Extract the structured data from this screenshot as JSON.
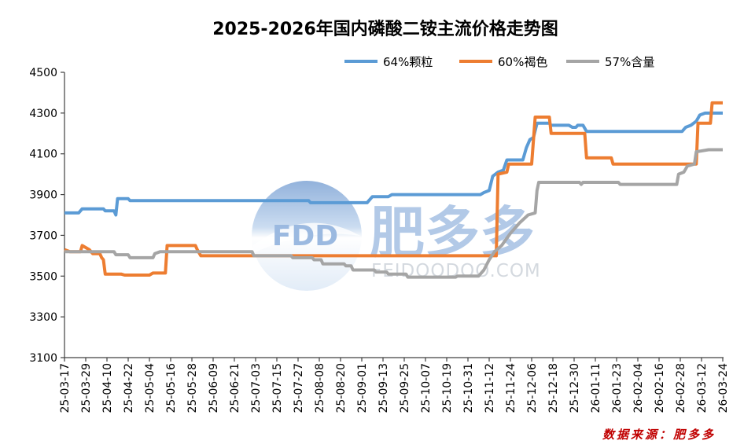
{
  "chart_data": {
    "type": "line",
    "title": "2025-2026年国内磷酸二铵主流价格走势图",
    "x_range": [
      "2025-03-17",
      "2026-03-24"
    ],
    "x_tick_labels": [
      "25-03-17",
      "25-03-29",
      "25-04-10",
      "25-04-22",
      "25-05-04",
      "25-05-16",
      "25-05-28",
      "25-06-09",
      "25-06-21",
      "25-07-03",
      "25-07-15",
      "25-07-27",
      "25-08-08",
      "25-08-20",
      "25-09-01",
      "25-09-13",
      "25-09-25",
      "25-10-07",
      "25-10-19",
      "25-10-31",
      "25-11-12",
      "25-11-24",
      "25-12-06",
      "25-12-18",
      "25-12-30",
      "26-01-11",
      "26-01-23",
      "26-02-04",
      "26-02-16",
      "26-02-28",
      "26-03-12",
      "26-03-24"
    ],
    "ylim": [
      3100,
      4500
    ],
    "y_ticks": [
      3100,
      3300,
      3500,
      3700,
      3900,
      4100,
      4300,
      4500
    ],
    "grid": false,
    "legend_position": "top",
    "series": [
      {
        "name": "64%颗粒",
        "color": "#5B9BD5",
        "points": [
          [
            "2025-03-17",
            3810
          ],
          [
            "2025-03-25",
            3810
          ],
          [
            "2025-03-27",
            3830
          ],
          [
            "2025-04-08",
            3830
          ],
          [
            "2025-04-09",
            3820
          ],
          [
            "2025-04-14",
            3820
          ],
          [
            "2025-04-15",
            3800
          ],
          [
            "2025-04-16",
            3880
          ],
          [
            "2025-04-22",
            3880
          ],
          [
            "2025-04-23",
            3870
          ],
          [
            "2025-08-02",
            3870
          ],
          [
            "2025-08-03",
            3860
          ],
          [
            "2025-09-04",
            3860
          ],
          [
            "2025-09-05",
            3870
          ],
          [
            "2025-09-07",
            3890
          ],
          [
            "2025-09-16",
            3890
          ],
          [
            "2025-09-18",
            3900
          ],
          [
            "2025-11-07",
            3900
          ],
          [
            "2025-11-09",
            3910
          ],
          [
            "2025-11-12",
            3920
          ],
          [
            "2025-11-14",
            3990
          ],
          [
            "2025-11-17",
            4010
          ],
          [
            "2025-11-20",
            4020
          ],
          [
            "2025-11-22",
            4070
          ],
          [
            "2025-12-01",
            4070
          ],
          [
            "2025-12-03",
            4130
          ],
          [
            "2025-12-05",
            4170
          ],
          [
            "2025-12-07",
            4180
          ],
          [
            "2025-12-09",
            4250
          ],
          [
            "2025-12-16",
            4250
          ],
          [
            "2025-12-17",
            4240
          ],
          [
            "2025-12-27",
            4240
          ],
          [
            "2025-12-29",
            4230
          ],
          [
            "2025-12-31",
            4230
          ],
          [
            "2026-01-01",
            4240
          ],
          [
            "2026-01-04",
            4240
          ],
          [
            "2026-01-06",
            4210
          ],
          [
            "2026-03-01",
            4210
          ],
          [
            "2026-03-03",
            4230
          ],
          [
            "2026-03-06",
            4240
          ],
          [
            "2026-03-09",
            4260
          ],
          [
            "2026-03-11",
            4290
          ],
          [
            "2026-03-14",
            4300
          ],
          [
            "2026-03-24",
            4300
          ]
        ]
      },
      {
        "name": "60%褐色",
        "color": "#ED7D31",
        "points": [
          [
            "2025-03-17",
            3630
          ],
          [
            "2025-03-20",
            3620
          ],
          [
            "2025-03-26",
            3620
          ],
          [
            "2025-03-27",
            3650
          ],
          [
            "2025-03-29",
            3640
          ],
          [
            "2025-03-31",
            3630
          ],
          [
            "2025-04-02",
            3610
          ],
          [
            "2025-04-06",
            3610
          ],
          [
            "2025-04-07",
            3590
          ],
          [
            "2025-04-08",
            3580
          ],
          [
            "2025-04-09",
            3510
          ],
          [
            "2025-04-18",
            3510
          ],
          [
            "2025-04-20",
            3505
          ],
          [
            "2025-05-04",
            3505
          ],
          [
            "2025-05-06",
            3515
          ],
          [
            "2025-05-13",
            3515
          ],
          [
            "2025-05-14",
            3650
          ],
          [
            "2025-05-30",
            3650
          ],
          [
            "2025-05-31",
            3630
          ],
          [
            "2025-06-02",
            3600
          ],
          [
            "2025-11-16",
            3600
          ],
          [
            "2025-11-17",
            4000
          ],
          [
            "2025-11-22",
            4010
          ],
          [
            "2025-11-23",
            4050
          ],
          [
            "2025-12-06",
            4050
          ],
          [
            "2025-12-08",
            4280
          ],
          [
            "2025-12-16",
            4280
          ],
          [
            "2025-12-17",
            4200
          ],
          [
            "2026-01-05",
            4200
          ],
          [
            "2026-01-06",
            4080
          ],
          [
            "2026-01-20",
            4080
          ],
          [
            "2026-01-21",
            4050
          ],
          [
            "2026-03-09",
            4050
          ],
          [
            "2026-03-10",
            4250
          ],
          [
            "2026-03-17",
            4250
          ],
          [
            "2026-03-18",
            4350
          ],
          [
            "2026-03-24",
            4350
          ]
        ]
      },
      {
        "name": "57%含量",
        "color": "#A5A5A5",
        "points": [
          [
            "2025-03-17",
            3620
          ],
          [
            "2025-04-14",
            3620
          ],
          [
            "2025-04-15",
            3605
          ],
          [
            "2025-04-22",
            3605
          ],
          [
            "2025-04-23",
            3590
          ],
          [
            "2025-05-06",
            3590
          ],
          [
            "2025-05-07",
            3610
          ],
          [
            "2025-05-10",
            3620
          ],
          [
            "2025-07-01",
            3620
          ],
          [
            "2025-07-02",
            3600
          ],
          [
            "2025-07-23",
            3600
          ],
          [
            "2025-07-24",
            3590
          ],
          [
            "2025-08-04",
            3590
          ],
          [
            "2025-08-05",
            3580
          ],
          [
            "2025-08-09",
            3580
          ],
          [
            "2025-08-10",
            3560
          ],
          [
            "2025-08-22",
            3560
          ],
          [
            "2025-08-23",
            3550
          ],
          [
            "2025-08-26",
            3550
          ],
          [
            "2025-08-27",
            3530
          ],
          [
            "2025-09-08",
            3530
          ],
          [
            "2025-09-09",
            3520
          ],
          [
            "2025-09-15",
            3520
          ],
          [
            "2025-09-16",
            3510
          ],
          [
            "2025-09-26",
            3510
          ],
          [
            "2025-09-27",
            3495
          ],
          [
            "2025-10-24",
            3495
          ],
          [
            "2025-10-25",
            3500
          ],
          [
            "2025-11-06",
            3500
          ],
          [
            "2025-11-09",
            3530
          ],
          [
            "2025-11-12",
            3580
          ],
          [
            "2025-11-15",
            3620
          ],
          [
            "2025-11-19",
            3650
          ],
          [
            "2025-11-24",
            3710
          ],
          [
            "2025-11-29",
            3760
          ],
          [
            "2025-12-04",
            3800
          ],
          [
            "2025-12-08",
            3810
          ],
          [
            "2025-12-09",
            3920
          ],
          [
            "2025-12-10",
            3960
          ],
          [
            "2026-01-02",
            3960
          ],
          [
            "2026-01-03",
            3950
          ],
          [
            "2026-01-04",
            3960
          ],
          [
            "2026-01-24",
            3960
          ],
          [
            "2026-01-25",
            3950
          ],
          [
            "2026-02-26",
            3950
          ],
          [
            "2026-02-27",
            4000
          ],
          [
            "2026-03-02",
            4010
          ],
          [
            "2026-03-04",
            4040
          ],
          [
            "2026-03-08",
            4050
          ],
          [
            "2026-03-09",
            4110
          ],
          [
            "2026-03-16",
            4120
          ],
          [
            "2026-03-24",
            4120
          ]
        ]
      }
    ]
  },
  "watermark": {
    "logo_text": "FDD",
    "brand": "肥多多",
    "site": "FEIDOODOO.COM"
  },
  "source": "数据来源：肥多多"
}
